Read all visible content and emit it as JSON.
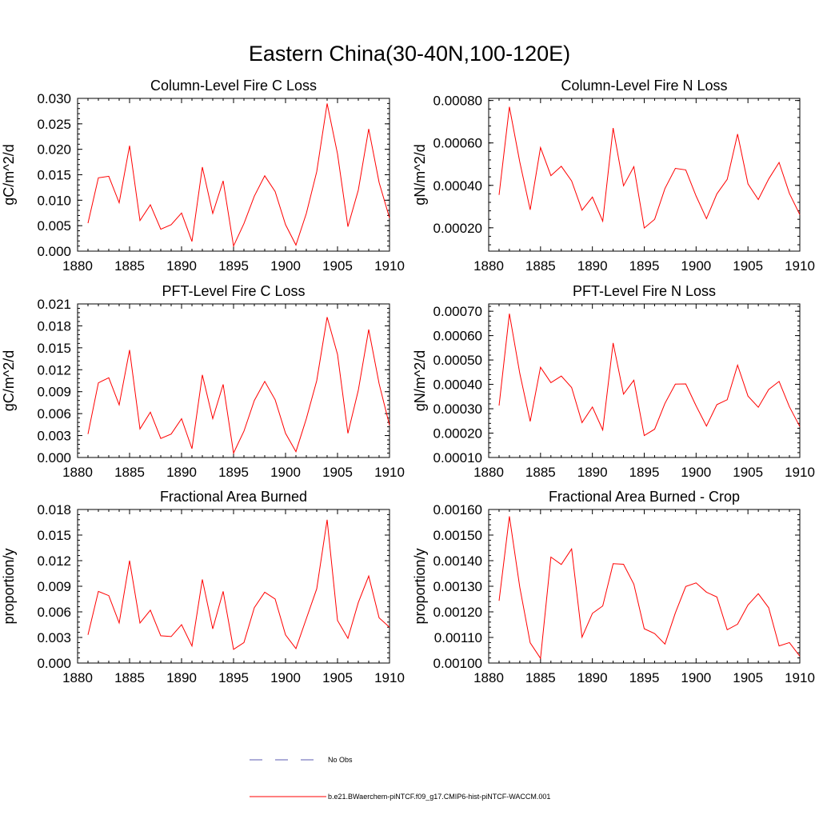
{
  "figure": {
    "title": "Eastern China(30-40N,100-120E)"
  },
  "legend": {
    "items": [
      {
        "label": "No Obs",
        "color": "#5b5bb0",
        "style": "dashed"
      },
      {
        "label": "b.e21.BWaerchem-piNTCF.f09_g17.CMIP6-hist-piNTCF-WACCM.001",
        "color": "#ff0000",
        "style": "solid"
      }
    ]
  },
  "chart_data": [
    {
      "type": "line",
      "title": "Column-Level Fire C Loss",
      "ylabel": "gC/m^2/d",
      "xlim": [
        1880,
        1910
      ],
      "ylim": [
        0,
        0.03
      ],
      "xticks": [
        "1880",
        "1885",
        "1890",
        "1895",
        "1900",
        "1905",
        "1910"
      ],
      "yticks": [
        "0.000",
        "0.005",
        "0.010",
        "0.015",
        "0.020",
        "0.025",
        "0.030"
      ],
      "x": [
        1881,
        1882,
        1883,
        1884,
        1885,
        1886,
        1887,
        1888,
        1889,
        1890,
        1891,
        1892,
        1893,
        1894,
        1895,
        1896,
        1897,
        1898,
        1899,
        1900,
        1901,
        1902,
        1903,
        1904,
        1905,
        1906,
        1907,
        1908,
        1909,
        1910
      ],
      "series": [
        {
          "color": "#ff0000",
          "values": [
            0.0055,
            0.0144,
            0.0147,
            0.0095,
            0.0207,
            0.006,
            0.0091,
            0.0043,
            0.0052,
            0.0075,
            0.0019,
            0.0165,
            0.0074,
            0.0138,
            0.001,
            0.0054,
            0.0108,
            0.0148,
            0.0117,
            0.0052,
            0.0012,
            0.0074,
            0.0156,
            0.029,
            0.0191,
            0.0048,
            0.012,
            0.024,
            0.0135,
            0.0065
          ]
        }
      ]
    },
    {
      "type": "line",
      "title": "Column-Level Fire N Loss",
      "ylabel": "gN/m^2/d",
      "xlim": [
        1880,
        1910
      ],
      "ylim": [
        9e-05,
        0.00081
      ],
      "xticks": [
        "1880",
        "1885",
        "1890",
        "1895",
        "1900",
        "1905",
        "1910"
      ],
      "yticks": [
        "0.00020",
        "0.00040",
        "0.00060",
        "0.00080"
      ],
      "ytick_values": [
        0.0002,
        0.0004,
        0.0006,
        0.0008
      ],
      "x": [
        1881,
        1882,
        1883,
        1884,
        1885,
        1886,
        1887,
        1888,
        1889,
        1890,
        1891,
        1892,
        1893,
        1894,
        1895,
        1896,
        1897,
        1898,
        1899,
        1900,
        1901,
        1902,
        1903,
        1904,
        1905,
        1906,
        1907,
        1908,
        1909,
        1910
      ],
      "series": [
        {
          "color": "#ff0000",
          "values": [
            0.000355,
            0.00077,
            0.00051,
            0.000285,
            0.000578,
            0.000446,
            0.00049,
            0.000421,
            0.000283,
            0.000345,
            0.000231,
            0.00067,
            0.000398,
            0.000488,
            0.000199,
            0.00024,
            0.000385,
            0.00048,
            0.000473,
            0.00035,
            0.000243,
            0.00036,
            0.000428,
            0.000642,
            0.000407,
            0.000333,
            0.00043,
            0.000508,
            0.000362,
            0.000262
          ]
        }
      ]
    },
    {
      "type": "line",
      "title": "PFT-Level Fire C Loss",
      "ylabel": "gC/m^2/d",
      "xlim": [
        1880,
        1910
      ],
      "ylim": [
        0,
        0.021
      ],
      "xticks": [
        "1880",
        "1885",
        "1890",
        "1895",
        "1900",
        "1905",
        "1910"
      ],
      "yticks": [
        "0.000",
        "0.003",
        "0.006",
        "0.009",
        "0.012",
        "0.015",
        "0.018",
        "0.021"
      ],
      "x": [
        1881,
        1882,
        1883,
        1884,
        1885,
        1886,
        1887,
        1888,
        1889,
        1890,
        1891,
        1892,
        1893,
        1894,
        1895,
        1896,
        1897,
        1898,
        1899,
        1900,
        1901,
        1902,
        1903,
        1904,
        1905,
        1906,
        1907,
        1908,
        1909,
        1910
      ],
      "series": [
        {
          "color": "#ff0000",
          "values": [
            0.0032,
            0.0102,
            0.0109,
            0.0072,
            0.0147,
            0.0039,
            0.0062,
            0.0026,
            0.0032,
            0.0053,
            0.0012,
            0.0113,
            0.0053,
            0.01,
            0.0006,
            0.0036,
            0.0078,
            0.0104,
            0.0079,
            0.0033,
            0.0008,
            0.0053,
            0.0105,
            0.0192,
            0.0141,
            0.0033,
            0.0092,
            0.0175,
            0.0101,
            0.0044
          ]
        }
      ]
    },
    {
      "type": "line",
      "title": "PFT-Level Fire N Loss",
      "ylabel": "gN/m^2/d",
      "xlim": [
        1880,
        1910
      ],
      "ylim": [
        0.0001,
        0.00073
      ],
      "xticks": [
        "1880",
        "1885",
        "1890",
        "1895",
        "1900",
        "1905",
        "1910"
      ],
      "yticks": [
        "0.00010",
        "0.00020",
        "0.00030",
        "0.00040",
        "0.00050",
        "0.00060",
        "0.00070"
      ],
      "ytick_values": [
        0.0001,
        0.0002,
        0.0003,
        0.0004,
        0.0005,
        0.0006,
        0.0007
      ],
      "x": [
        1881,
        1882,
        1883,
        1884,
        1885,
        1886,
        1887,
        1888,
        1889,
        1890,
        1891,
        1892,
        1893,
        1894,
        1895,
        1896,
        1897,
        1898,
        1899,
        1900,
        1901,
        1902,
        1903,
        1904,
        1905,
        1906,
        1907,
        1908,
        1909,
        1910
      ],
      "series": [
        {
          "color": "#ff0000",
          "values": [
            0.000313,
            0.00069,
            0.000445,
            0.000248,
            0.00047,
            0.000407,
            0.000434,
            0.000387,
            0.000243,
            0.000307,
            0.000213,
            0.00057,
            0.00036,
            0.000417,
            0.00019,
            0.000216,
            0.000322,
            0.000401,
            0.000402,
            0.000312,
            0.000229,
            0.000317,
            0.000337,
            0.000479,
            0.000352,
            0.000306,
            0.000379,
            0.000412,
            0.000308,
            0.000227
          ]
        }
      ]
    },
    {
      "type": "line",
      "title": "Fractional Area Burned",
      "ylabel": "proportion/y",
      "xlim": [
        1880,
        1910
      ],
      "ylim": [
        0,
        0.018
      ],
      "xticks": [
        "1880",
        "1885",
        "1890",
        "1895",
        "1900",
        "1905",
        "1910"
      ],
      "yticks": [
        "0.000",
        "0.003",
        "0.006",
        "0.009",
        "0.012",
        "0.015",
        "0.018"
      ],
      "x": [
        1881,
        1882,
        1883,
        1884,
        1885,
        1886,
        1887,
        1888,
        1889,
        1890,
        1891,
        1892,
        1893,
        1894,
        1895,
        1896,
        1897,
        1898,
        1899,
        1900,
        1901,
        1902,
        1903,
        1904,
        1905,
        1906,
        1907,
        1908,
        1909,
        1910
      ],
      "series": [
        {
          "color": "#ff0000",
          "values": [
            0.0033,
            0.0084,
            0.0079,
            0.0047,
            0.012,
            0.0047,
            0.0062,
            0.0032,
            0.0031,
            0.0045,
            0.002,
            0.0098,
            0.004,
            0.0084,
            0.0016,
            0.0024,
            0.0065,
            0.0083,
            0.0075,
            0.0033,
            0.0017,
            0.0052,
            0.0087,
            0.0168,
            0.005,
            0.0029,
            0.0071,
            0.0102,
            0.0053,
            0.0042
          ]
        }
      ]
    },
    {
      "type": "line",
      "title": "Fractional Area Burned - Crop",
      "ylabel": "proportion/y",
      "xlim": [
        1880,
        1910
      ],
      "ylim": [
        0.001,
        0.0016
      ],
      "xticks": [
        "1880",
        "1885",
        "1890",
        "1895",
        "1900",
        "1905",
        "1910"
      ],
      "yticks": [
        "0.00100",
        "0.00110",
        "0.00120",
        "0.00130",
        "0.00140",
        "0.00150",
        "0.00160"
      ],
      "ytick_values": [
        0.001,
        0.0011,
        0.0012,
        0.0013,
        0.0014,
        0.0015,
        0.0016
      ],
      "x": [
        1881,
        1882,
        1883,
        1884,
        1885,
        1886,
        1887,
        1888,
        1889,
        1890,
        1891,
        1892,
        1893,
        1894,
        1895,
        1896,
        1897,
        1898,
        1899,
        1900,
        1901,
        1902,
        1903,
        1904,
        1905,
        1906,
        1907,
        1908,
        1909,
        1910
      ],
      "series": [
        {
          "color": "#ff0000",
          "values": [
            0.001243,
            0.001573,
            0.001296,
            0.001079,
            0.001018,
            0.001414,
            0.001385,
            0.001446,
            0.001101,
            0.001194,
            0.001223,
            0.001388,
            0.001386,
            0.001308,
            0.001134,
            0.001115,
            0.001074,
            0.001196,
            0.001299,
            0.001313,
            0.001277,
            0.001258,
            0.00113,
            0.001152,
            0.001227,
            0.001271,
            0.001216,
            0.001067,
            0.00108,
            0.001027
          ]
        }
      ]
    }
  ]
}
